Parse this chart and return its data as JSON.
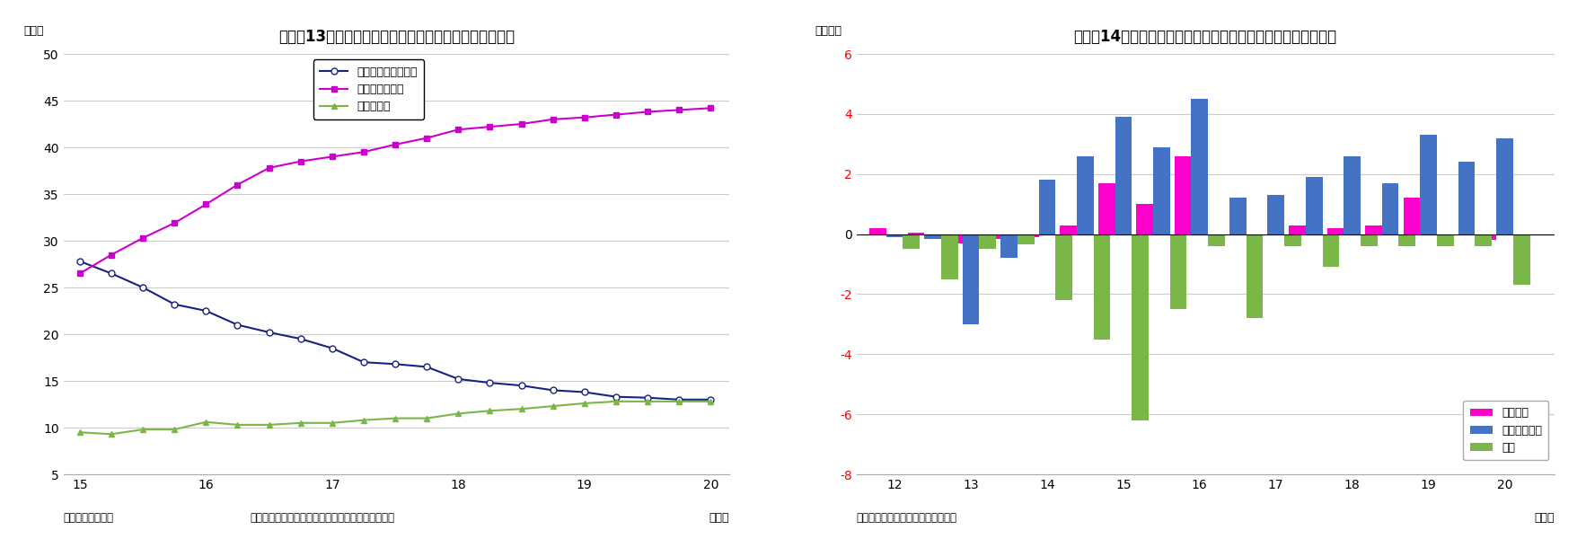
{
  "chart13": {
    "title": "（図表13）預金取扱機関と日銀、海外の国債保有シェア",
    "ylabel": "（％）",
    "xlabel_suffix": "（年）",
    "source": "（資料）日本銀行",
    "note": "（注）国債は、国庫短期証券と国債・財投債の合計",
    "ylim": [
      5,
      50
    ],
    "yticks": [
      5,
      10,
      15,
      20,
      25,
      30,
      35,
      40,
      45,
      50
    ],
    "xticks": [
      15,
      16,
      17,
      18,
      19,
      20
    ],
    "x_labels": [
      "15",
      "16",
      "17",
      "18",
      "19",
      "20"
    ],
    "series": {
      "deposit": {
        "label": "預金取扱機関シェア",
        "color": "#1a237e",
        "marker": "o",
        "markerfacecolor": "white",
        "x": [
          15.0,
          15.25,
          15.5,
          15.75,
          16.0,
          16.25,
          16.5,
          16.75,
          17.0,
          17.25,
          17.5,
          17.75,
          18.0,
          18.25,
          18.5,
          18.75,
          19.0,
          19.25,
          19.5,
          19.75,
          20.0
        ],
        "y": [
          27.8,
          26.5,
          25.0,
          23.2,
          22.5,
          21.0,
          20.2,
          19.5,
          18.5,
          17.0,
          16.8,
          16.5,
          15.2,
          14.8,
          14.5,
          14.0,
          13.8,
          13.3,
          13.2,
          13.0,
          13.0
        ]
      },
      "boj": {
        "label": "日本銀行シェア",
        "color": "#cc00cc",
        "marker": "s",
        "markerfacecolor": "#cc00cc",
        "x": [
          15.0,
          15.25,
          15.5,
          15.75,
          16.0,
          16.25,
          16.5,
          16.75,
          17.0,
          17.25,
          17.5,
          17.75,
          18.0,
          18.25,
          18.5,
          18.75,
          19.0,
          19.25,
          19.5,
          19.75,
          20.0
        ],
        "y": [
          26.5,
          28.5,
          30.3,
          31.9,
          33.9,
          36.0,
          37.8,
          38.5,
          39.0,
          39.5,
          40.3,
          41.0,
          41.9,
          42.2,
          42.5,
          43.0,
          43.2,
          43.5,
          43.8,
          44.0,
          44.2
        ]
      },
      "overseas": {
        "label": "海外シェア",
        "color": "#7ab648",
        "marker": "^",
        "markerfacecolor": "#7ab648",
        "x": [
          15.0,
          15.25,
          15.5,
          15.75,
          16.0,
          16.25,
          16.5,
          16.75,
          17.0,
          17.25,
          17.5,
          17.75,
          18.0,
          18.25,
          18.5,
          18.75,
          19.0,
          19.25,
          19.5,
          19.75,
          20.0
        ],
        "y": [
          9.5,
          9.3,
          9.8,
          9.8,
          10.6,
          10.3,
          10.3,
          10.5,
          10.5,
          10.8,
          11.0,
          11.0,
          11.5,
          11.8,
          12.0,
          12.3,
          12.6,
          12.8,
          12.8,
          12.8,
          12.8
        ]
      }
    }
  },
  "chart14": {
    "title": "（図表14）公的年金の株・対外証券・国債投資（資金フロー）",
    "ylabel": "（兆円）",
    "xlabel_suffix": "（年）",
    "source": "（資料）日本銀行「資金循環統計」",
    "ylim": [
      -8,
      6
    ],
    "yticks": [
      -8,
      -6,
      -4,
      -2,
      0,
      2,
      4,
      6
    ],
    "xticks": [
      12,
      13,
      14,
      15,
      16,
      17,
      18,
      19,
      20
    ],
    "x_labels": [
      "12",
      "13",
      "14",
      "15",
      "16",
      "17",
      "18",
      "19",
      "20"
    ],
    "bar_width": 0.22,
    "categories": [
      12.0,
      12.5,
      13.0,
      13.5,
      14.0,
      14.5,
      15.0,
      15.5,
      16.0,
      16.5,
      17.0,
      17.5,
      18.0,
      18.5,
      19.0,
      19.5,
      20.0
    ],
    "stocks": [
      0.2,
      0.05,
      -0.3,
      -0.15,
      -0.1,
      0.3,
      1.7,
      1.0,
      2.6,
      0.0,
      0.0,
      0.3,
      0.2,
      0.3,
      1.2,
      0.0,
      -0.2
    ],
    "foreign": [
      -0.1,
      -0.15,
      -3.0,
      -0.8,
      1.8,
      2.6,
      3.9,
      2.9,
      4.5,
      1.2,
      1.3,
      1.9,
      2.6,
      1.7,
      3.3,
      2.4,
      3.2
    ],
    "bonds": [
      -0.5,
      -1.5,
      -0.5,
      -0.35,
      -2.2,
      -3.5,
      -6.2,
      -2.5,
      -0.4,
      -2.8,
      -0.4,
      -1.1,
      -0.4,
      -0.4,
      -0.4,
      -0.4,
      -1.7
    ],
    "stock_color": "#ff00cc",
    "foreign_color": "#4472c4",
    "bond_color": "#7ab648",
    "legend_stock": "上場株式",
    "legend_foreign": "対外証券投資",
    "legend_bond": "国債"
  }
}
